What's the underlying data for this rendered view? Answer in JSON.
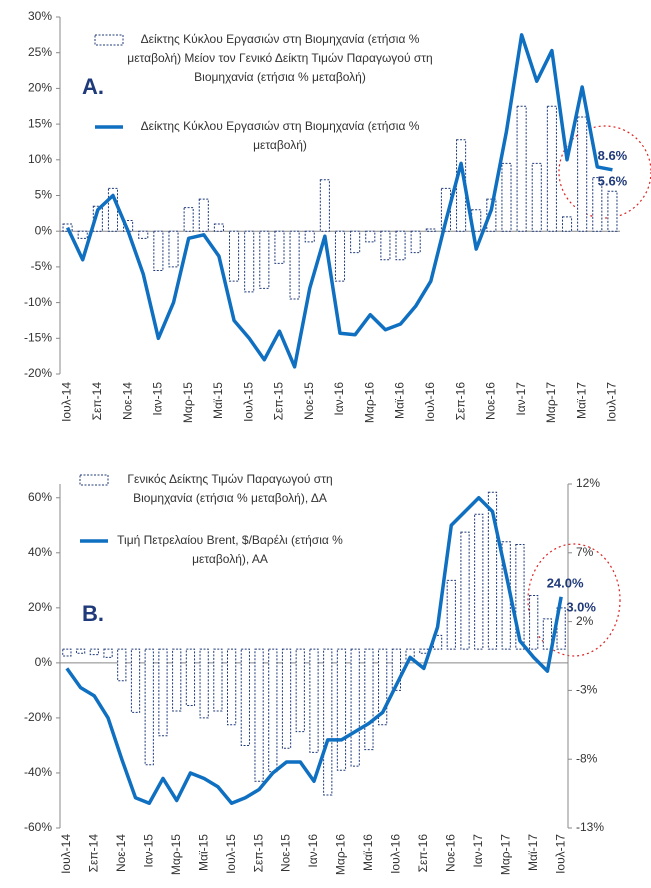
{
  "chart_data": [
    {
      "type": "combo",
      "annotations": [
        "A."
      ],
      "categories": [
        "Ιουλ-14",
        null,
        "Σεπ-14",
        null,
        "Νοε-14",
        null,
        "Ιαν-15",
        null,
        "Μαρ-15",
        null,
        "Μαϊ-15",
        null,
        "Ιουλ-15",
        null,
        "Σεπ-15",
        null,
        "Νοε-15",
        null,
        "Ιαν-16",
        null,
        "Μαρ-16",
        null,
        "Μαϊ-16",
        null,
        "Ιουλ-16",
        null,
        "Σεπ-16",
        null,
        "Νοε-16",
        null,
        "Ιαν-17",
        null,
        "Μαρ-17",
        null,
        "Μαϊ-17",
        null,
        "Ιουλ-17"
      ],
      "ylim": [
        -20,
        30
      ],
      "yticks": [
        {
          "value": -20,
          "label": "-20%"
        },
        {
          "value": -15,
          "label": "-15%"
        },
        {
          "value": -10,
          "label": "-10%"
        },
        {
          "value": -5,
          "label": "-5%"
        },
        {
          "value": 0,
          "label": "0%"
        },
        {
          "value": 5,
          "label": "5%"
        },
        {
          "value": 10,
          "label": "10%"
        },
        {
          "value": 15,
          "label": "15%"
        },
        {
          "value": 20,
          "label": "20%"
        },
        {
          "value": 25,
          "label": "25%"
        },
        {
          "value": 30,
          "label": "30%"
        }
      ],
      "series": [
        {
          "name": "Δείκτης Κύκλου Εργασιών στη Βιομηχανία (ετήσια % μεταβολή) Μείον τον Γενικό Δείκτη Τιμών Παραγωγού στη Βιομηχανία (ετήσια % μεταβολή)",
          "type": "bar",
          "color": "#1f3a7a",
          "values": [
            1,
            -1,
            3.5,
            6,
            1.5,
            -1,
            -5.5,
            -5,
            3.3,
            4.5,
            1,
            -7,
            -8.5,
            -8,
            -4.5,
            -9.5,
            -1.5,
            7.2,
            -7,
            -3,
            -1.5,
            -4,
            -4,
            -3,
            0.3,
            6,
            12.8,
            3,
            4.5,
            9.5,
            17.5,
            9.5,
            17.5,
            2,
            16,
            7.5,
            5.6
          ],
          "value_labels": [
            null,
            null,
            null,
            null,
            null,
            null,
            null,
            null,
            null,
            null,
            null,
            null,
            null,
            null,
            null,
            null,
            null,
            null,
            null,
            null,
            null,
            null,
            null,
            null,
            null,
            null,
            null,
            null,
            null,
            null,
            null,
            null,
            null,
            null,
            null,
            null,
            "5.6%"
          ]
        },
        {
          "name": "Δείκτης Κύκλου Εργασιών στη Βιομηχανία (ετήσια % μεταβολή)",
          "type": "line",
          "color": "#0f6fc0",
          "values": [
            0.5,
            -4,
            3,
            5,
            0,
            -6,
            -15,
            -10,
            -1,
            -0.5,
            -3.5,
            -12.5,
            -15,
            -18,
            -14,
            -19,
            -8,
            -0.7,
            -14.3,
            -14.5,
            -11.7,
            -13.8,
            -13,
            -10.5,
            -7,
            1.5,
            9.5,
            -2.5,
            3,
            14,
            27.5,
            21,
            25.3,
            10,
            20.2,
            9,
            8.6
          ],
          "value_labels": [
            null,
            null,
            null,
            null,
            null,
            null,
            null,
            null,
            null,
            null,
            null,
            null,
            null,
            null,
            null,
            null,
            null,
            null,
            null,
            null,
            null,
            null,
            null,
            null,
            null,
            null,
            null,
            null,
            null,
            null,
            null,
            null,
            null,
            null,
            null,
            null,
            "8.6%"
          ]
        }
      ]
    },
    {
      "type": "combo",
      "annotations": [
        "B."
      ],
      "categories": [
        "Ιουλ-14",
        null,
        "Σεπ-14",
        null,
        "Νοε-14",
        null,
        "Ιαν-15",
        null,
        "Μαρ-15",
        null,
        "Μαϊ-15",
        null,
        "Ιουλ-15",
        null,
        "Σεπ-15",
        null,
        "Νοε-15",
        null,
        "Ιαν-16",
        null,
        "Μαρ-16",
        null,
        "Μαϊ-16",
        null,
        "Ιουλ-16",
        null,
        "Σεπ-16",
        null,
        "Νοε-16",
        null,
        "Ιαν-17",
        null,
        "Μαρ-17",
        null,
        "Μαϊ-17",
        null,
        "Ιουλ-17"
      ],
      "ylim": [
        -60,
        65
      ],
      "yticks": [
        {
          "value": -60,
          "label": "-60%"
        },
        {
          "value": -40,
          "label": "-40%"
        },
        {
          "value": -20,
          "label": "-20%"
        },
        {
          "value": 0,
          "label": "0%"
        },
        {
          "value": 20,
          "label": "20%"
        },
        {
          "value": 40,
          "label": "40%"
        },
        {
          "value": 60,
          "label": "60%"
        }
      ],
      "y2lim": [
        -13,
        12
      ],
      "y2ticks": [
        {
          "value": -13,
          "label": "-13%"
        },
        {
          "value": -8,
          "label": "-8%"
        },
        {
          "value": -3,
          "label": "-3%"
        },
        {
          "value": 2,
          "label": "2%"
        },
        {
          "value": 7,
          "label": "7%"
        },
        {
          "value": 12,
          "label": "12%"
        }
      ],
      "series": [
        {
          "name": "Γενικός Δείκτης Τιμών Παραγωγού στη Βιομηχανία (ετήσια % μεταβολή), ΔΑ",
          "type": "bar",
          "axis": "y2",
          "color": "#1f3a7a",
          "values": [
            -0.5,
            -0.3,
            -0.4,
            -0.6,
            -2.3,
            -4.6,
            -8.4,
            -6.3,
            -4.5,
            -4.1,
            -5,
            -4.5,
            -5.5,
            -7,
            -9.6,
            -8.9,
            -7.2,
            -6,
            -7.5,
            -10.6,
            -8.8,
            -8.5,
            -7.3,
            -5.5,
            -3,
            -0.8,
            -0.3,
            1,
            5,
            8.5,
            9.8,
            11.4,
            7.8,
            7.6,
            3.9,
            2.2,
            3.0
          ],
          "value_labels": [
            null,
            null,
            null,
            null,
            null,
            null,
            null,
            null,
            null,
            null,
            null,
            null,
            null,
            null,
            null,
            null,
            null,
            null,
            null,
            null,
            null,
            null,
            null,
            null,
            null,
            null,
            null,
            null,
            null,
            null,
            null,
            null,
            null,
            null,
            null,
            null,
            "3.0%"
          ]
        },
        {
          "name": "Τιμή Πετρελαίου Brent, $/Βαρέλι (ετήσια % μεταβολή), ΑΑ",
          "type": "line",
          "color": "#0f6fc0",
          "values": [
            -2,
            -9,
            -12,
            -20,
            -35,
            -49,
            -51,
            -42,
            -50,
            -40,
            -42,
            -45,
            -51,
            -49,
            -46,
            -40,
            -36,
            -36,
            -43,
            -28,
            -28,
            -25,
            -22,
            -18,
            -8,
            2,
            -2,
            13,
            50,
            55,
            60,
            55,
            32,
            8,
            2,
            -3,
            24.0
          ],
          "value_labels": [
            null,
            null,
            null,
            null,
            null,
            null,
            null,
            null,
            null,
            null,
            null,
            null,
            null,
            null,
            null,
            null,
            null,
            null,
            null,
            null,
            null,
            null,
            null,
            null,
            null,
            null,
            null,
            null,
            null,
            null,
            null,
            null,
            null,
            null,
            null,
            null,
            "24.0%"
          ]
        }
      ]
    }
  ]
}
